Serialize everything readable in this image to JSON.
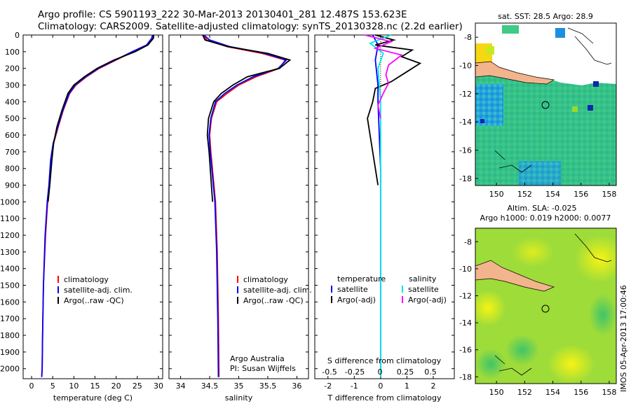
{
  "header": {
    "line1": "Argo profile: CS 5901193_222 30-Mar-2013 20130401_281 12.487S 153.623E",
    "line2": "Climatology: CARS2009. Satellite-adjusted climatology: synTS_20130328.nc (2.2d earlier)"
  },
  "colors": {
    "climatology": "#ff0000",
    "satellite": "#0000ff",
    "argo": "#000000",
    "sat_salinity": "#00e5e5",
    "argo_salinity": "#ff00ff"
  },
  "chart_data": [
    {
      "type": "line",
      "id": "temperature",
      "xlabel": "temperature (deg C)",
      "xlim": [
        -2,
        31
      ],
      "xticks": [
        0,
        5,
        10,
        15,
        20,
        25,
        30
      ],
      "ylim": [
        2060,
        0
      ],
      "yticks": [
        0,
        100,
        200,
        300,
        400,
        500,
        600,
        700,
        800,
        900,
        1000,
        1100,
        1200,
        1300,
        1400,
        1500,
        1600,
        1700,
        1800,
        1900,
        2000
      ],
      "legend": [
        "climatology",
        "satellite-adj. clim.",
        "Argo(..raw -QC)"
      ],
      "series": [
        {
          "name": "climatology",
          "x": [
            28.9,
            28.7,
            27.5,
            24,
            20,
            16,
            13,
            10.5,
            9,
            7.5,
            6.3,
            5.2,
            4.6,
            4.2,
            3.8,
            3.3,
            2.8,
            2.6,
            2.5,
            2.4
          ],
          "y": [
            0,
            20,
            60,
            100,
            150,
            200,
            250,
            300,
            350,
            450,
            550,
            650,
            750,
            900,
            1000,
            1200,
            1500,
            1800,
            2000,
            2050
          ]
        },
        {
          "name": "satellite-adj. clim.",
          "x": [
            28.6,
            28.4,
            27.2,
            23.8,
            19.8,
            15.8,
            12.8,
            10.3,
            8.9,
            7.4,
            6.2,
            5.1,
            4.5,
            4.1,
            3.7,
            3.2,
            2.8,
            2.6,
            2.5,
            2.4
          ],
          "y": [
            0,
            20,
            60,
            100,
            150,
            200,
            250,
            300,
            350,
            450,
            550,
            650,
            750,
            900,
            1000,
            1200,
            1500,
            1800,
            2000,
            2050
          ]
        },
        {
          "name": "Argo(..raw -QC)",
          "x": [
            28.9,
            28.8,
            27.5,
            24.5,
            19.5,
            15.5,
            12.5,
            10,
            8.6,
            7.2,
            6,
            5.2,
            4.8,
            4.3,
            3.9
          ],
          "y": [
            0,
            20,
            60,
            100,
            150,
            200,
            250,
            300,
            350,
            450,
            550,
            650,
            750,
            900,
            1000
          ]
        }
      ]
    },
    {
      "type": "line",
      "id": "salinity",
      "xlabel": "salinity",
      "xlim": [
        33.8,
        36.2
      ],
      "xticks": [
        34,
        34.5,
        35,
        35.5,
        36
      ],
      "ylim": [
        2060,
        0
      ],
      "legend": [
        "climatology",
        "satellite-adj. clim.",
        "Argo(..raw -QC)"
      ],
      "annotations": [
        "Argo Australia",
        "PI: Susan Wijffels"
      ],
      "series": [
        {
          "name": "climatology",
          "x": [
            34.4,
            34.45,
            34.8,
            35.4,
            35.8,
            35.7,
            35.3,
            35.0,
            34.8,
            34.62,
            34.53,
            34.5,
            34.52,
            34.56,
            34.6,
            34.63,
            34.65,
            34.66
          ],
          "y": [
            0,
            30,
            70,
            110,
            150,
            200,
            250,
            300,
            350,
            400,
            500,
            600,
            700,
            850,
            1000,
            1300,
            1700,
            2050
          ]
        },
        {
          "name": "satellite-adj. clim.",
          "x": [
            34.4,
            34.5,
            34.85,
            35.45,
            35.82,
            35.68,
            35.25,
            34.97,
            34.76,
            34.6,
            34.52,
            34.49,
            34.51,
            34.55,
            34.59,
            34.62,
            34.64,
            34.65
          ],
          "y": [
            0,
            30,
            70,
            110,
            150,
            200,
            250,
            300,
            350,
            400,
            500,
            600,
            700,
            850,
            1000,
            1300,
            1700,
            2050
          ]
        },
        {
          "name": "Argo(..raw -QC)",
          "x": [
            34.38,
            34.42,
            34.82,
            35.5,
            35.88,
            35.7,
            35.15,
            34.9,
            34.7,
            34.57,
            34.48,
            34.46,
            34.49,
            34.52,
            34.55
          ],
          "y": [
            0,
            30,
            70,
            110,
            150,
            200,
            250,
            300,
            350,
            400,
            500,
            600,
            700,
            850,
            1000
          ]
        }
      ]
    },
    {
      "type": "line",
      "id": "difference",
      "xlabel": "T difference from climatology",
      "xlabel_top": "S difference from climatology",
      "xlim": [
        -2.5,
        2.8
      ],
      "xticks": [
        -2,
        -1,
        0,
        1,
        2
      ],
      "xticks_top_values": [
        -0.5,
        -0.25,
        0,
        0.25,
        0.5
      ],
      "ylim": [
        2060,
        0
      ],
      "legend": [
        {
          "group": "temperature",
          "items": [
            "satellite",
            "Argo(-adj)"
          ]
        },
        {
          "group": "salinity",
          "items": [
            "satellite",
            "Argo(-adj)"
          ]
        }
      ],
      "series": [
        {
          "name": "temperature satellite",
          "x": [
            -0.3,
            -0.1,
            -0.2,
            -0.1,
            -0.1,
            -0.05,
            0,
            0,
            0,
            0
          ],
          "y": [
            0,
            60,
            150,
            300,
            400,
            600,
            800,
            1200,
            1600,
            2050
          ]
        },
        {
          "name": "temperature Argo(-adj)",
          "x": [
            -0.2,
            0.5,
            -0.2,
            1.2,
            0.8,
            1.5,
            1.0,
            0.4,
            -0.2,
            -0.3,
            -0.5,
            -0.3,
            -0.1
          ],
          "y": [
            0,
            30,
            60,
            90,
            130,
            170,
            220,
            280,
            320,
            400,
            500,
            700,
            900
          ]
        },
        {
          "name": "salinity satellite",
          "x": [
            0.4,
            -0.4,
            0.1,
            -0.1,
            0.0,
            0.0,
            0.0,
            0.0
          ],
          "y": [
            0,
            50,
            110,
            200,
            400,
            800,
            1400,
            2050
          ]
        },
        {
          "name": "salinity Argo(-adj)",
          "x": [
            -0.6,
            0.4,
            -0.2,
            0.8,
            0.3,
            0.2,
            0.3,
            0.1,
            -0.1,
            0.0
          ],
          "y": [
            0,
            40,
            80,
            120,
            180,
            240,
            290,
            350,
            420,
            500
          ]
        }
      ]
    },
    {
      "type": "heatmap",
      "id": "sst-map",
      "title": "sat. SST: 28.5  Argo: 28.9",
      "xlim": [
        148.5,
        158.5
      ],
      "ylim": [
        -18.5,
        -7
      ],
      "xticks": [
        150,
        152,
        154,
        156,
        158
      ],
      "yticks": [
        -8,
        -10,
        -12,
        -14,
        -16,
        -18
      ]
    },
    {
      "type": "heatmap",
      "id": "sla-map",
      "title": "Altim. SLA: -0.025",
      "subtitle": "Argo h1000: 0.019 h2000: 0.0077",
      "xlim": [
        148.5,
        158.5
      ],
      "ylim": [
        -18.5,
        -7
      ],
      "xticks": [
        150,
        152,
        154,
        156,
        158
      ],
      "yticks": [
        -8,
        -10,
        -12,
        -14,
        -16,
        -18
      ]
    }
  ],
  "footer": {
    "stamp": "IMOS 05-Apr-2013 17:00:46"
  }
}
